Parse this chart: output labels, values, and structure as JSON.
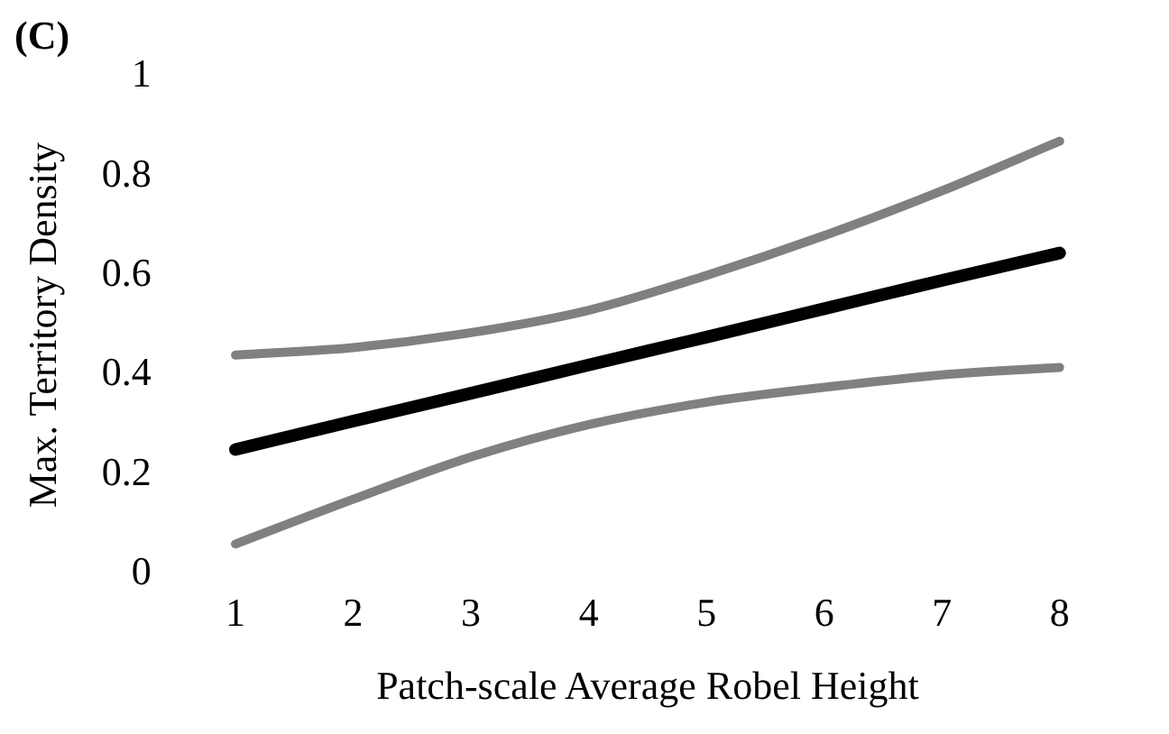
{
  "chart_data": {
    "type": "line",
    "title": "(C)",
    "xlabel": "Patch-scale Average Robel Height",
    "ylabel": "Max. Territory Density",
    "categories": [
      "1",
      "2",
      "3",
      "4",
      "5",
      "6",
      "7",
      "8"
    ],
    "series": [
      {
        "color": "#808080",
        "values": [
          0.44,
          0.455,
          0.485,
          0.53,
          0.6,
          0.68,
          0.77,
          0.87
        ]
      },
      {
        "color": "#808080",
        "values": [
          0.06,
          0.15,
          0.235,
          0.3,
          0.345,
          0.375,
          0.4,
          0.415
        ]
      },
      {
        "color": "#000000",
        "values": [
          0.25,
          0.307,
          0.363,
          0.42,
          0.476,
          0.533,
          0.59,
          0.645
        ]
      }
    ],
    "ylim": [
      0,
      1
    ],
    "yticks": [
      0,
      0.2,
      0.4,
      0.6,
      0.8,
      1
    ],
    "grid": false,
    "legend": false,
    "marker": "none",
    "line_style": "solid"
  }
}
